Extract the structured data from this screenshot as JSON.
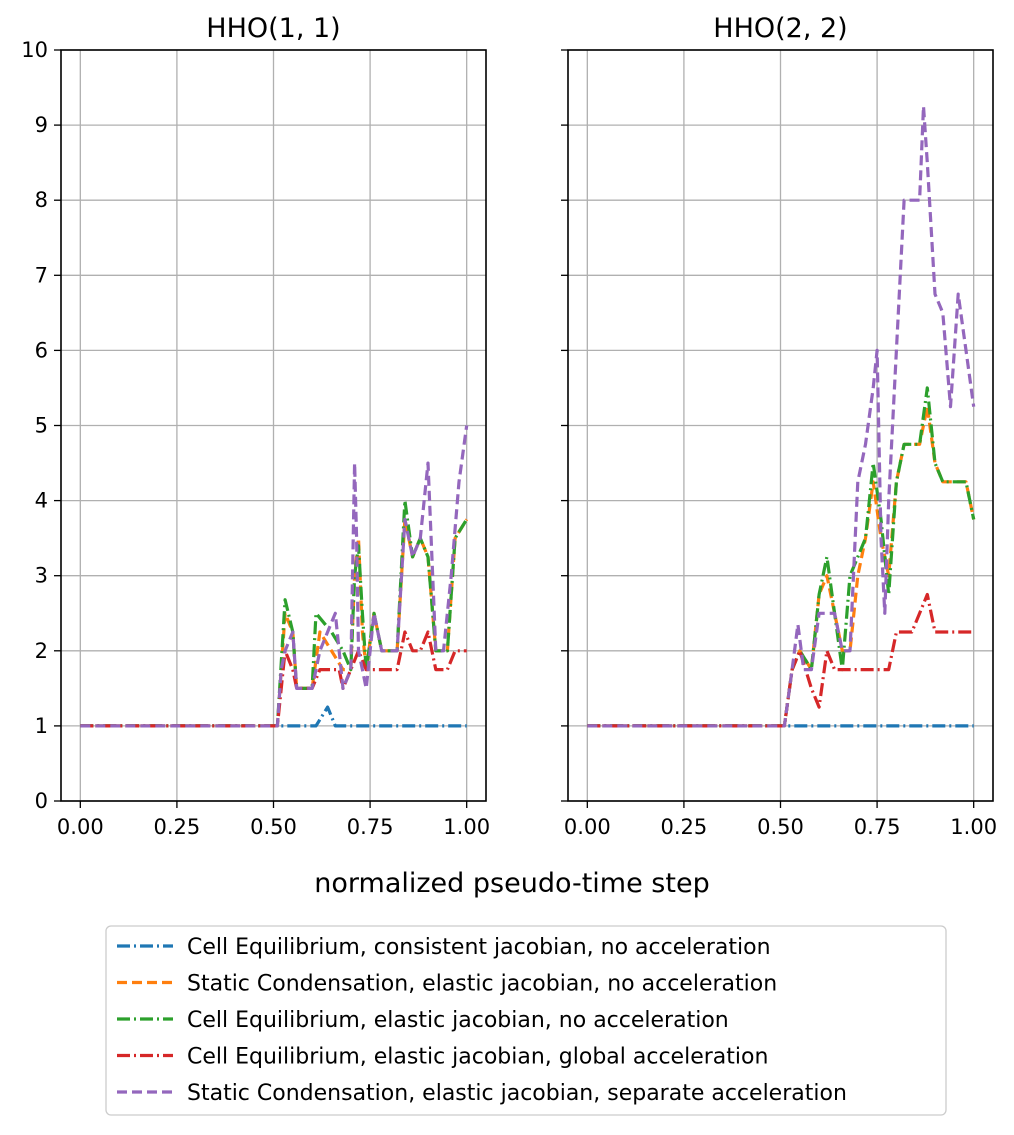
{
  "figure": {
    "xlabel": "normalized pseudo-time step",
    "shared_y": true
  },
  "legend": {
    "placement": "bottom-center",
    "entries": [
      {
        "label": "Cell Equilibrium, consistent jacobian, no acceleration",
        "color": "#1f77b4",
        "style": "dashdot"
      },
      {
        "label": "Static Condensation, elastic jacobian, no acceleration",
        "color": "#ff7f0e",
        "style": "dashed"
      },
      {
        "label": "Cell Equilibrium, elastic jacobian, no acceleration",
        "color": "#2ca02c",
        "style": "dashdot"
      },
      {
        "label": "Cell Equilibrium, elastic jacobian, global acceleration",
        "color": "#d62728",
        "style": "dashdot"
      },
      {
        "label": "Static Condensation, elastic jacobian, separate acceleration",
        "color": "#9467bd",
        "style": "dashed"
      }
    ]
  },
  "chart_data": [
    {
      "type": "line",
      "title": "HHO(1, 1)",
      "xlabel": "normalized pseudo-time step",
      "ylabel": "",
      "xlim": [
        -0.05,
        1.05
      ],
      "ylim": [
        0,
        10
      ],
      "xticks": [
        "0.00",
        "0.25",
        "0.50",
        "0.75",
        "1.00"
      ],
      "yticks": [
        "0",
        "1",
        "2",
        "3",
        "4",
        "5",
        "6",
        "7",
        "8",
        "9",
        "10"
      ],
      "grid": true,
      "series": [
        {
          "name": "Cell Equilibrium, consistent jacobian, no acceleration",
          "x": [
            0.0,
            0.5,
            0.61,
            0.64,
            0.66,
            0.75,
            1.0
          ],
          "y": [
            1,
            1,
            1,
            1.25,
            1,
            1,
            1
          ]
        },
        {
          "name": "Static Condensation, elastic jacobian, no acceleration",
          "x": [
            0.0,
            0.51,
            0.53,
            0.55,
            0.56,
            0.6,
            0.62,
            0.65,
            0.68,
            0.7,
            0.71,
            0.72,
            0.73,
            0.74,
            0.76,
            0.78,
            0.8,
            0.82,
            0.84,
            0.86,
            0.88,
            0.9,
            0.92,
            0.95,
            0.97,
            1.0
          ],
          "y": [
            1,
            1,
            2.5,
            2.25,
            1.5,
            1.5,
            2.25,
            2.0,
            1.75,
            1.75,
            3.0,
            3.5,
            2.25,
            1.75,
            2.5,
            2.0,
            2.0,
            2.0,
            3.75,
            3.25,
            3.5,
            3.25,
            2.0,
            2.0,
            3.5,
            3.75
          ]
        },
        {
          "name": "Cell Equilibrium, elastic jacobian, no acceleration",
          "x": [
            0.0,
            0.51,
            0.53,
            0.55,
            0.56,
            0.6,
            0.61,
            0.65,
            0.68,
            0.7,
            0.71,
            0.72,
            0.73,
            0.74,
            0.76,
            0.78,
            0.8,
            0.82,
            0.84,
            0.86,
            0.88,
            0.9,
            0.92,
            0.95,
            0.97,
            1.0
          ],
          "y": [
            1,
            1,
            2.68,
            2.25,
            1.5,
            1.5,
            2.5,
            2.25,
            2.0,
            1.75,
            3.0,
            3.4,
            2.5,
            1.75,
            2.5,
            2.0,
            2.0,
            2.0,
            4.0,
            3.25,
            3.5,
            3.25,
            2.0,
            2.0,
            3.5,
            3.75
          ]
        },
        {
          "name": "Cell Equilibrium, elastic jacobian, global acceleration",
          "x": [
            0.0,
            0.51,
            0.53,
            0.55,
            0.56,
            0.6,
            0.62,
            0.67,
            0.68,
            0.7,
            0.72,
            0.74,
            0.76,
            0.78,
            0.8,
            0.82,
            0.84,
            0.86,
            0.88,
            0.9,
            0.92,
            0.95,
            0.97,
            1.0
          ],
          "y": [
            1,
            1,
            2.0,
            1.75,
            1.5,
            1.5,
            1.75,
            1.75,
            1.5,
            1.75,
            2.0,
            1.75,
            1.75,
            1.75,
            1.75,
            1.75,
            2.25,
            2.0,
            2.0,
            2.25,
            1.75,
            1.75,
            2.0,
            2.0
          ]
        },
        {
          "name": "Static Condensation, elastic jacobian, separate acceleration",
          "x": [
            0.0,
            0.51,
            0.52,
            0.53,
            0.55,
            0.56,
            0.6,
            0.62,
            0.64,
            0.66,
            0.68,
            0.7,
            0.71,
            0.715,
            0.72,
            0.73,
            0.74,
            0.76,
            0.78,
            0.8,
            0.82,
            0.84,
            0.86,
            0.88,
            0.9,
            0.92,
            0.94,
            0.96,
            0.98,
            1.0
          ],
          "y": [
            1,
            1,
            1.75,
            2.0,
            2.25,
            1.5,
            1.5,
            2.0,
            2.25,
            2.5,
            1.5,
            1.75,
            4.5,
            3.5,
            2.0,
            1.75,
            1.5,
            2.5,
            2.0,
            2.0,
            2.0,
            3.75,
            3.25,
            3.5,
            4.5,
            2.0,
            2.0,
            3.0,
            4.25,
            5.0
          ]
        }
      ]
    },
    {
      "type": "line",
      "title": "HHO(2, 2)",
      "xlabel": "normalized pseudo-time step",
      "ylabel": "",
      "xlim": [
        -0.05,
        1.05
      ],
      "ylim": [
        0,
        10
      ],
      "xticks": [
        "0.00",
        "0.25",
        "0.50",
        "0.75",
        "1.00"
      ],
      "yticks": [
        "0",
        "1",
        "2",
        "3",
        "4",
        "5",
        "6",
        "7",
        "8",
        "9",
        "10"
      ],
      "grid": true,
      "series": [
        {
          "name": "Cell Equilibrium, consistent jacobian, no acceleration",
          "x": [
            0.0,
            1.0
          ],
          "y": [
            1,
            1
          ]
        },
        {
          "name": "Static Condensation, elastic jacobian, no acceleration",
          "x": [
            0.0,
            0.51,
            0.53,
            0.55,
            0.58,
            0.6,
            0.62,
            0.64,
            0.66,
            0.68,
            0.7,
            0.72,
            0.74,
            0.76,
            0.78,
            0.8,
            0.82,
            0.84,
            0.86,
            0.88,
            0.9,
            0.92,
            0.94,
            0.96,
            0.98,
            1.0
          ],
          "y": [
            1,
            1,
            1.75,
            2.0,
            1.75,
            2.75,
            3.0,
            2.5,
            2.0,
            2.0,
            3.0,
            3.5,
            4.25,
            3.5,
            3.0,
            4.25,
            4.75,
            4.75,
            4.75,
            5.25,
            4.5,
            4.25,
            4.25,
            4.25,
            4.25,
            3.75
          ]
        },
        {
          "name": "Cell Equilibrium, elastic jacobian, no acceleration",
          "x": [
            0.0,
            0.51,
            0.53,
            0.55,
            0.58,
            0.6,
            0.62,
            0.64,
            0.66,
            0.68,
            0.7,
            0.72,
            0.74,
            0.76,
            0.78,
            0.8,
            0.82,
            0.84,
            0.86,
            0.88,
            0.9,
            0.92,
            0.94,
            0.96,
            0.98,
            1.0
          ],
          "y": [
            1,
            1,
            1.75,
            2.0,
            1.75,
            2.75,
            3.25,
            2.5,
            1.75,
            3.0,
            3.25,
            3.5,
            4.5,
            3.75,
            2.75,
            4.25,
            4.75,
            4.75,
            4.75,
            5.5,
            4.5,
            4.25,
            4.25,
            4.25,
            4.25,
            3.75
          ]
        },
        {
          "name": "Cell Equilibrium, elastic jacobian, global acceleration",
          "x": [
            0.0,
            0.51,
            0.53,
            0.55,
            0.58,
            0.6,
            0.62,
            0.64,
            0.66,
            0.68,
            0.7,
            0.72,
            0.74,
            0.76,
            0.78,
            0.8,
            0.82,
            0.84,
            0.86,
            0.88,
            0.9,
            0.92,
            0.94,
            0.96,
            0.98,
            1.0
          ],
          "y": [
            1,
            1,
            1.75,
            2.0,
            1.5,
            1.25,
            2.0,
            1.75,
            1.75,
            1.75,
            1.75,
            1.75,
            1.75,
            1.75,
            1.75,
            2.25,
            2.25,
            2.25,
            2.5,
            2.75,
            2.25,
            2.25,
            2.25,
            2.25,
            2.25,
            2.25
          ]
        },
        {
          "name": "Static Condensation, elastic jacobian, separate acceleration",
          "x": [
            0.0,
            0.51,
            0.53,
            0.545,
            0.56,
            0.58,
            0.6,
            0.62,
            0.64,
            0.66,
            0.68,
            0.7,
            0.72,
            0.74,
            0.75,
            0.76,
            0.77,
            0.78,
            0.8,
            0.82,
            0.84,
            0.86,
            0.87,
            0.88,
            0.9,
            0.92,
            0.94,
            0.96,
            0.98,
            1.0
          ],
          "y": [
            1,
            1,
            1.75,
            2.35,
            1.75,
            1.75,
            2.5,
            2.5,
            2.5,
            2.0,
            2.0,
            4.25,
            4.75,
            5.5,
            6.0,
            3.5,
            2.5,
            4.0,
            6.0,
            8.0,
            8.0,
            8.0,
            9.25,
            8.5,
            6.75,
            6.5,
            5.25,
            6.75,
            6.0,
            5.25
          ]
        }
      ]
    }
  ]
}
